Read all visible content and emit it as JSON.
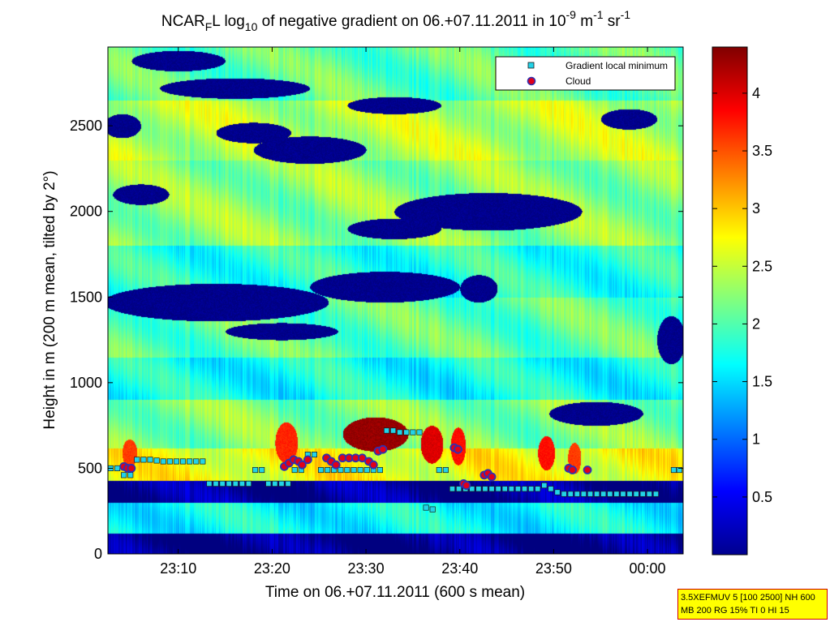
{
  "chart_data": {
    "type": "heatmap",
    "title": {
      "p1": "NCAR",
      "p1_sub": "F",
      "p2": "L log",
      "p2_sub": "10",
      "p3": " of negative gradient on 06.+07.11.2011 in 10",
      "p3_sup": "-9",
      "p4": " m",
      "p4_sup": "-1",
      "p5": " sr",
      "p5_sup": "-1"
    },
    "xlabel": "Time on 06.+07.11.2011 (600 s mean)",
    "ylabel": "Height in m (200 m mean, tilted by 2°)",
    "x_unit": "minutes after 23:00",
    "xlim": [
      2.5,
      63.8
    ],
    "ylim": [
      0,
      2960
    ],
    "x_ticks": [
      10,
      20,
      30,
      40,
      50,
      60
    ],
    "x_tick_labels": [
      "23:10",
      "23:20",
      "23:30",
      "23:40",
      "23:50",
      "00:00"
    ],
    "y_ticks": [
      0,
      500,
      1000,
      1500,
      2000,
      2500
    ],
    "y_tick_labels": [
      "0",
      "500",
      "1000",
      "1500",
      "2000",
      "2500"
    ],
    "colorbar": {
      "colormap": "jet",
      "range": [
        0,
        4.4
      ],
      "ticks": [
        0.5,
        1,
        1.5,
        2,
        2.5,
        3,
        3.5,
        4
      ],
      "tick_labels": [
        "0.5",
        "1",
        "1.5",
        "2",
        "2.5",
        "3",
        "3.5",
        "4"
      ]
    },
    "legend": {
      "position": "top-right",
      "entries": [
        {
          "label": "Gradient local minimum",
          "marker": "square",
          "color": "#22d3e8"
        },
        {
          "label": "Cloud",
          "marker": "circle",
          "color": "#e0001a",
          "edge": "#3030b0"
        }
      ]
    },
    "field": {
      "base_value": 1.9,
      "layers": [
        {
          "t0": 2.5,
          "t1": 63.8,
          "z0": 0,
          "z1": 120,
          "v": 0.05
        },
        {
          "t0": 2.5,
          "t1": 63.8,
          "z0": 120,
          "z1": 300,
          "v": 1.65
        },
        {
          "t0": 2.5,
          "t1": 63.8,
          "z0": 300,
          "z1": 430,
          "v": 0.1
        },
        {
          "t0": 2.5,
          "t1": 63.8,
          "z0": 430,
          "z1": 620,
          "v": 2.7
        },
        {
          "t0": 2.5,
          "t1": 63.8,
          "z0": 620,
          "z1": 900,
          "v": 2.2
        },
        {
          "t0": 2.5,
          "t1": 63.8,
          "z0": 900,
          "z1": 1150,
          "v": 1.7
        },
        {
          "t0": 2.5,
          "t1": 63.8,
          "z0": 1150,
          "z1": 1500,
          "v": 2.05
        },
        {
          "t0": 2.5,
          "t1": 63.8,
          "z0": 1500,
          "z1": 1800,
          "v": 1.8
        },
        {
          "t0": 2.5,
          "t1": 63.8,
          "z0": 1800,
          "z1": 2300,
          "v": 2.25
        },
        {
          "t0": 2.5,
          "t1": 63.8,
          "z0": 2300,
          "z1": 2650,
          "v": 2.45
        },
        {
          "t0": 2.5,
          "t1": 63.8,
          "z0": 2650,
          "z1": 2960,
          "v": 2.05
        }
      ],
      "features": [
        {
          "t": 14,
          "z": 1470,
          "rt": 12,
          "rz": 110,
          "v": 0.05
        },
        {
          "t": 32,
          "z": 1560,
          "rt": 8,
          "rz": 90,
          "v": 0.05
        },
        {
          "t": 21,
          "z": 1300,
          "rt": 6,
          "rz": 50,
          "v": 0.05
        },
        {
          "t": 42,
          "z": 1550,
          "rt": 2,
          "rz": 80,
          "v": 0.05
        },
        {
          "t": 43,
          "z": 2000,
          "rt": 10,
          "rz": 110,
          "v": 0.05
        },
        {
          "t": 33,
          "z": 1900,
          "rt": 5,
          "rz": 60,
          "v": 0.05
        },
        {
          "t": 24,
          "z": 2360,
          "rt": 6,
          "rz": 80,
          "v": 0.05
        },
        {
          "t": 18,
          "z": 2460,
          "rt": 4,
          "rz": 60,
          "v": 0.05
        },
        {
          "t": 33,
          "z": 2620,
          "rt": 5,
          "rz": 50,
          "v": 0.05
        },
        {
          "t": 16,
          "z": 2720,
          "rt": 8,
          "rz": 60,
          "v": 0.05
        },
        {
          "t": 10,
          "z": 2880,
          "rt": 5,
          "rz": 60,
          "v": 0.05
        },
        {
          "t": 54.5,
          "z": 820,
          "rt": 5,
          "rz": 70,
          "v": 0.05
        },
        {
          "t": 62.5,
          "z": 1250,
          "rt": 1.5,
          "rz": 140,
          "v": 0.05
        },
        {
          "t": 4,
          "z": 2500,
          "rt": 2,
          "rz": 70,
          "v": 0.05
        },
        {
          "t": 6,
          "z": 2100,
          "rt": 3,
          "rz": 60,
          "v": 0.05
        },
        {
          "t": 58,
          "z": 2540,
          "rt": 3,
          "rz": 60,
          "v": 0.05
        },
        {
          "t": 31,
          "z": 700,
          "rt": 3.5,
          "rz": 100,
          "v": 4.3
        },
        {
          "t": 21.5,
          "z": 650,
          "rt": 1.2,
          "rz": 120,
          "v": 3.7
        },
        {
          "t": 37,
          "z": 640,
          "rt": 1.2,
          "rz": 110,
          "v": 4.0
        },
        {
          "t": 39.8,
          "z": 630,
          "rt": 0.8,
          "rz": 110,
          "v": 3.8
        },
        {
          "t": 4.8,
          "z": 590,
          "rt": 0.8,
          "rz": 80,
          "v": 3.6
        },
        {
          "t": 49.2,
          "z": 590,
          "rt": 0.9,
          "rz": 100,
          "v": 3.8
        },
        {
          "t": 52.2,
          "z": 560,
          "rt": 0.7,
          "rz": 90,
          "v": 3.6
        }
      ]
    },
    "series": [
      {
        "name": "Gradient local minimum",
        "x": [
          2.8,
          3.5,
          4.2,
          4.9,
          5.6,
          6.3,
          7.0,
          7.7,
          8.4,
          9.1,
          9.8,
          10.5,
          11.2,
          11.9,
          12.6,
          13.3,
          14.0,
          14.7,
          15.4,
          16.1,
          16.8,
          17.5,
          18.2,
          18.9,
          19.6,
          20.3,
          21.0,
          21.7,
          22.4,
          23.1,
          23.8,
          24.5,
          25.2,
          25.9,
          26.6,
          27.3,
          28.0,
          28.7,
          29.4,
          30.1,
          30.8,
          31.5,
          32.2,
          32.9,
          33.6,
          34.3,
          35.0,
          35.7,
          36.4,
          37.1,
          37.8,
          38.5,
          39.2,
          39.9,
          40.6,
          41.3,
          42.0,
          42.7,
          43.4,
          44.1,
          44.8,
          45.5,
          46.2,
          46.9,
          47.6,
          48.3,
          49.0,
          49.7,
          50.4,
          51.1,
          51.8,
          52.5,
          53.2,
          53.9,
          54.6,
          55.3,
          56.0,
          56.7,
          57.4,
          58.1,
          58.8,
          59.5,
          60.2,
          60.9,
          62.8,
          63.4
        ],
        "y": [
          500,
          500,
          460,
          460,
          550,
          550,
          550,
          545,
          540,
          540,
          540,
          540,
          540,
          540,
          540,
          410,
          410,
          410,
          410,
          410,
          410,
          410,
          490,
          490,
          410,
          410,
          410,
          410,
          490,
          490,
          580,
          580,
          490,
          490,
          490,
          490,
          490,
          490,
          490,
          490,
          490,
          490,
          720,
          720,
          710,
          710,
          710,
          710,
          270,
          260,
          490,
          490,
          380,
          380,
          380,
          380,
          380,
          380,
          380,
          380,
          380,
          380,
          380,
          380,
          380,
          380,
          400,
          380,
          360,
          350,
          350,
          350,
          350,
          350,
          350,
          350,
          350,
          350,
          350,
          350,
          350,
          350,
          350,
          350,
          490,
          490
        ]
      },
      {
        "name": "Cloud",
        "x": [
          4.2,
          4.6,
          5.0,
          21.3,
          21.8,
          22.3,
          22.8,
          23.2,
          23.8,
          25.8,
          26.3,
          26.8,
          27.5,
          28.2,
          28.9,
          29.6,
          30.3,
          30.8,
          31.3,
          31.8,
          39.4,
          39.8,
          40.4,
          40.7,
          42.6,
          43.0,
          43.4,
          51.6,
          52.0,
          53.6
        ],
        "y": [
          510,
          500,
          500,
          510,
          530,
          550,
          540,
          520,
          550,
          560,
          540,
          520,
          560,
          560,
          560,
          560,
          540,
          520,
          600,
          610,
          620,
          610,
          410,
          400,
          460,
          470,
          450,
          500,
          490,
          490
        ]
      }
    ]
  },
  "params_box": {
    "line1": "3.5XEFMUV 5 [100 2500] NH 600",
    "line2": "MB 200 RG 15% TI 0 HI 15",
    "bg_color": "#ffff00",
    "border_color": "#d00000"
  }
}
